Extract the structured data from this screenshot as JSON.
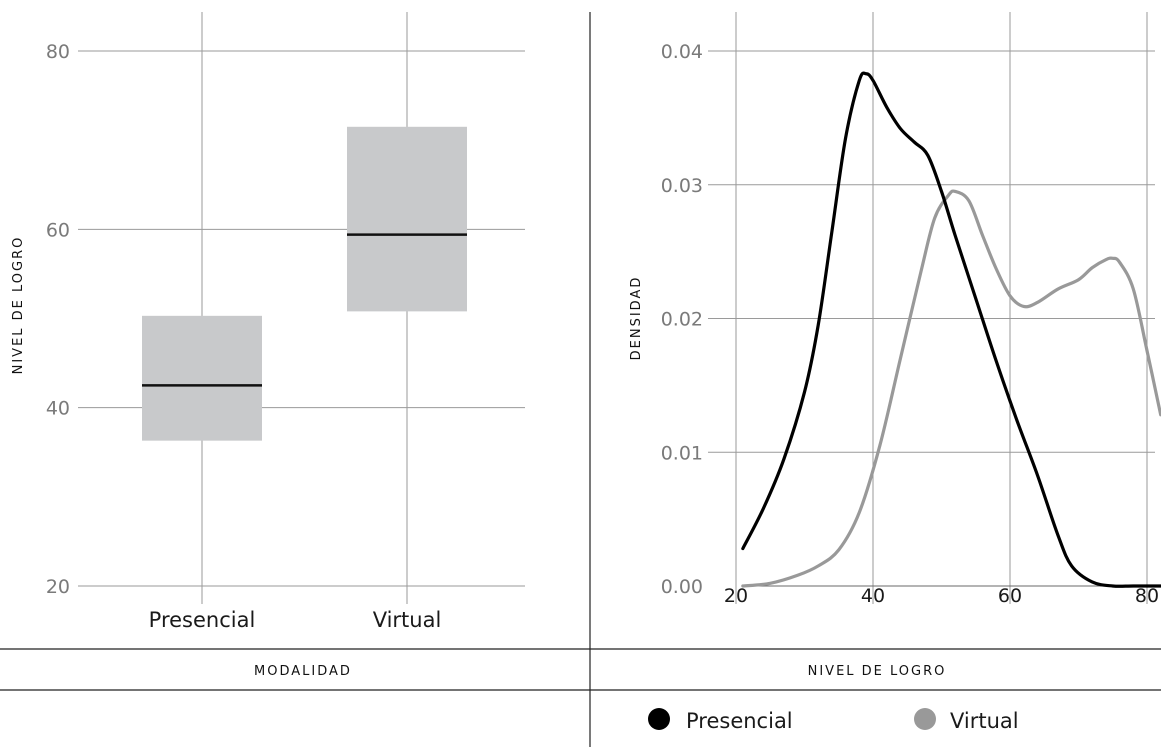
{
  "chart_data": [
    {
      "type": "box",
      "xlabel": "MODALIDAD",
      "ylabel": "NIVEL DE LOGRO",
      "ylim": [
        20,
        80
      ],
      "yticks": [
        20,
        40,
        60,
        80
      ],
      "categories": [
        "Presencial",
        "Virtual"
      ],
      "boxes": [
        {
          "category": "Presencial",
          "q1": 36.3,
          "median": 42.5,
          "q3": 50.3
        },
        {
          "category": "Virtual",
          "q1": 50.8,
          "median": 59.4,
          "q3": 71.5
        }
      ],
      "grid": true,
      "colors": {
        "box": "#c8c9cb",
        "median": "#111111"
      }
    },
    {
      "type": "line",
      "xlabel": "NIVEL DE LOGRO",
      "ylabel": "DENSIDAD",
      "xlim": [
        20,
        82
      ],
      "ylim": [
        0,
        0.04
      ],
      "xticks": [
        20,
        40,
        60,
        80
      ],
      "yticks": [
        "0.00",
        "0.01",
        "0.02",
        "0.03",
        "0.04"
      ],
      "grid": true,
      "legend": "bottom",
      "series": [
        {
          "name": "Presencial",
          "color": "#000000",
          "points": [
            [
              21,
              0.0028
            ],
            [
              24,
              0.0058
            ],
            [
              27,
              0.0095
            ],
            [
              30,
              0.0145
            ],
            [
              32,
              0.0195
            ],
            [
              34,
              0.0265
            ],
            [
              36,
              0.0335
            ],
            [
              38,
              0.0378
            ],
            [
              39,
              0.0383
            ],
            [
              40,
              0.0378
            ],
            [
              42,
              0.0358
            ],
            [
              44,
              0.0342
            ],
            [
              46,
              0.0332
            ],
            [
              48,
              0.0322
            ],
            [
              50,
              0.0295
            ],
            [
              52,
              0.0262
            ],
            [
              55,
              0.0215
            ],
            [
              58,
              0.0168
            ],
            [
              61,
              0.0124
            ],
            [
              64,
              0.0083
            ],
            [
              67,
              0.0038
            ],
            [
              69,
              0.0015
            ],
            [
              72,
              0.0003
            ],
            [
              75,
              0.0
            ],
            [
              78,
              0.0
            ],
            [
              82,
              0.0
            ]
          ]
        },
        {
          "name": "Virtual",
          "color": "#999999",
          "points": [
            [
              21,
              0.0
            ],
            [
              25,
              0.0002
            ],
            [
              29,
              0.0008
            ],
            [
              32,
              0.0015
            ],
            [
              35,
              0.0027
            ],
            [
              38,
              0.0055
            ],
            [
              41,
              0.0105
            ],
            [
              44,
              0.017
            ],
            [
              47,
              0.0235
            ],
            [
              49,
              0.0275
            ],
            [
              51,
              0.0292
            ],
            [
              52,
              0.0295
            ],
            [
              54,
              0.0288
            ],
            [
              56,
              0.0262
            ],
            [
              58,
              0.0237
            ],
            [
              60,
              0.0217
            ],
            [
              62,
              0.0209
            ],
            [
              64,
              0.0212
            ],
            [
              67,
              0.0222
            ],
            [
              70,
              0.0229
            ],
            [
              72,
              0.0238
            ],
            [
              74,
              0.0244
            ],
            [
              75,
              0.0245
            ],
            [
              76,
              0.0242
            ],
            [
              78,
              0.0222
            ],
            [
              80,
              0.0176
            ],
            [
              82,
              0.0128
            ]
          ]
        }
      ]
    }
  ]
}
